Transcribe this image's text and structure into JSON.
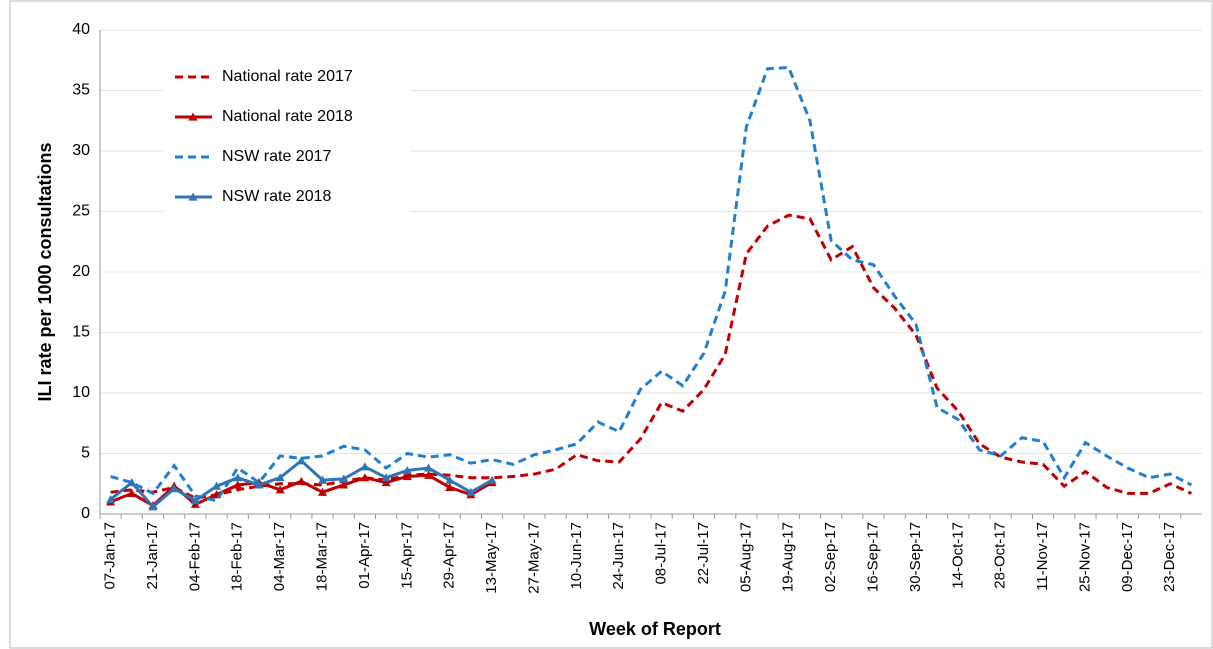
{
  "chart_data": {
    "type": "line",
    "x_label": "Week of Report",
    "y_label": "ILI rate per 1000 consultations",
    "categories": [
      "07-Jan-17",
      null,
      "21-Jan-17",
      null,
      "04-Feb-17",
      null,
      "18-Feb-17",
      null,
      "04-Mar-17",
      null,
      "18-Mar-17",
      null,
      "01-Apr-17",
      null,
      "15-Apr-17",
      null,
      "29-Apr-17",
      null,
      "13-May-17",
      null,
      "27-May-17",
      null,
      "10-Jun-17",
      null,
      "24-Jun-17",
      null,
      "08-Jul-17",
      null,
      "22-Jul-17",
      null,
      "05-Aug-17",
      null,
      "19-Aug-17",
      null,
      "02-Sep-17",
      null,
      "16-Sep-17",
      null,
      "30-Sep-17",
      null,
      "14-Oct-17",
      null,
      "28-Oct-17",
      null,
      "11-Nov-17",
      null,
      "25-Nov-17",
      null,
      "09-Dec-17",
      null,
      "23-Dec-17",
      null
    ],
    "series": [
      {
        "name": "National rate 2017",
        "color": "#c00000",
        "dashed": true,
        "marker": "none",
        "values": [
          1.8,
          2.0,
          1.8,
          2.2,
          1.3,
          1.6,
          2.0,
          2.3,
          2.5,
          2.5,
          2.4,
          2.7,
          3.0,
          2.8,
          3.2,
          3.3,
          3.2,
          3.0,
          3.0,
          3.1,
          3.3,
          3.7,
          4.9,
          4.4,
          4.3,
          6.2,
          9.2,
          8.5,
          10.3,
          13.2,
          21.5,
          23.8,
          24.7,
          24.4,
          21.0,
          22.1,
          18.7,
          17.0,
          14.8,
          10.4,
          8.5,
          5.8,
          4.7,
          4.3,
          4.1,
          2.3,
          3.5,
          2.2,
          1.7,
          1.7,
          2.5,
          1.7
        ]
      },
      {
        "name": "National rate 2018",
        "color": "#c00000",
        "dashed": false,
        "marker": "triangle",
        "values": [
          1.0,
          1.7,
          0.7,
          2.3,
          0.8,
          1.6,
          2.4,
          2.6,
          2.0,
          2.7,
          1.8,
          2.4,
          3.0,
          2.6,
          3.1,
          3.2,
          2.2,
          1.6,
          2.6,
          null,
          null,
          null,
          null,
          null,
          null,
          null,
          null,
          null,
          null,
          null,
          null,
          null,
          null,
          null,
          null,
          null,
          null,
          null,
          null,
          null,
          null,
          null,
          null,
          null,
          null,
          null,
          null,
          null,
          null,
          null,
          null,
          null
        ]
      },
      {
        "name": "NSW rate 2017",
        "color": "#1f7fd0",
        "dashed": true,
        "marker": "none",
        "values": [
          3.1,
          2.6,
          1.7,
          4.0,
          1.5,
          1.1,
          3.8,
          2.6,
          4.8,
          4.6,
          4.8,
          5.6,
          5.3,
          3.8,
          5.0,
          4.7,
          4.9,
          4.2,
          4.5,
          4.1,
          4.9,
          5.3,
          5.8,
          7.6,
          6.8,
          10.3,
          11.8,
          10.6,
          13.3,
          18.4,
          32.0,
          36.8,
          36.9,
          32.5,
          22.6,
          21.0,
          20.6,
          18.0,
          15.7,
          8.8,
          7.8,
          5.3,
          4.8,
          6.3,
          6.0,
          3.0,
          5.9,
          4.8,
          3.8,
          3.0,
          3.3,
          2.4
        ]
      },
      {
        "name": "NSW rate 2018",
        "color": "#2e75b6",
        "dashed": false,
        "marker": "triangle",
        "values": [
          1.2,
          2.6,
          0.6,
          2.1,
          1.1,
          2.3,
          3.0,
          2.4,
          3.0,
          4.4,
          2.8,
          2.9,
          3.9,
          3.0,
          3.6,
          3.8,
          2.8,
          1.8,
          2.8,
          null,
          null,
          null,
          null,
          null,
          null,
          null,
          null,
          null,
          null,
          null,
          null,
          null,
          null,
          null,
          null,
          null,
          null,
          null,
          null,
          null,
          null,
          null,
          null,
          null,
          null,
          null,
          null,
          null,
          null,
          null,
          null,
          null
        ]
      }
    ],
    "ylim": [
      0,
      40
    ],
    "yticks": [
      0,
      5,
      10,
      15,
      20,
      25,
      30,
      35,
      40
    ],
    "grid": true,
    "legend": "top-left"
  }
}
